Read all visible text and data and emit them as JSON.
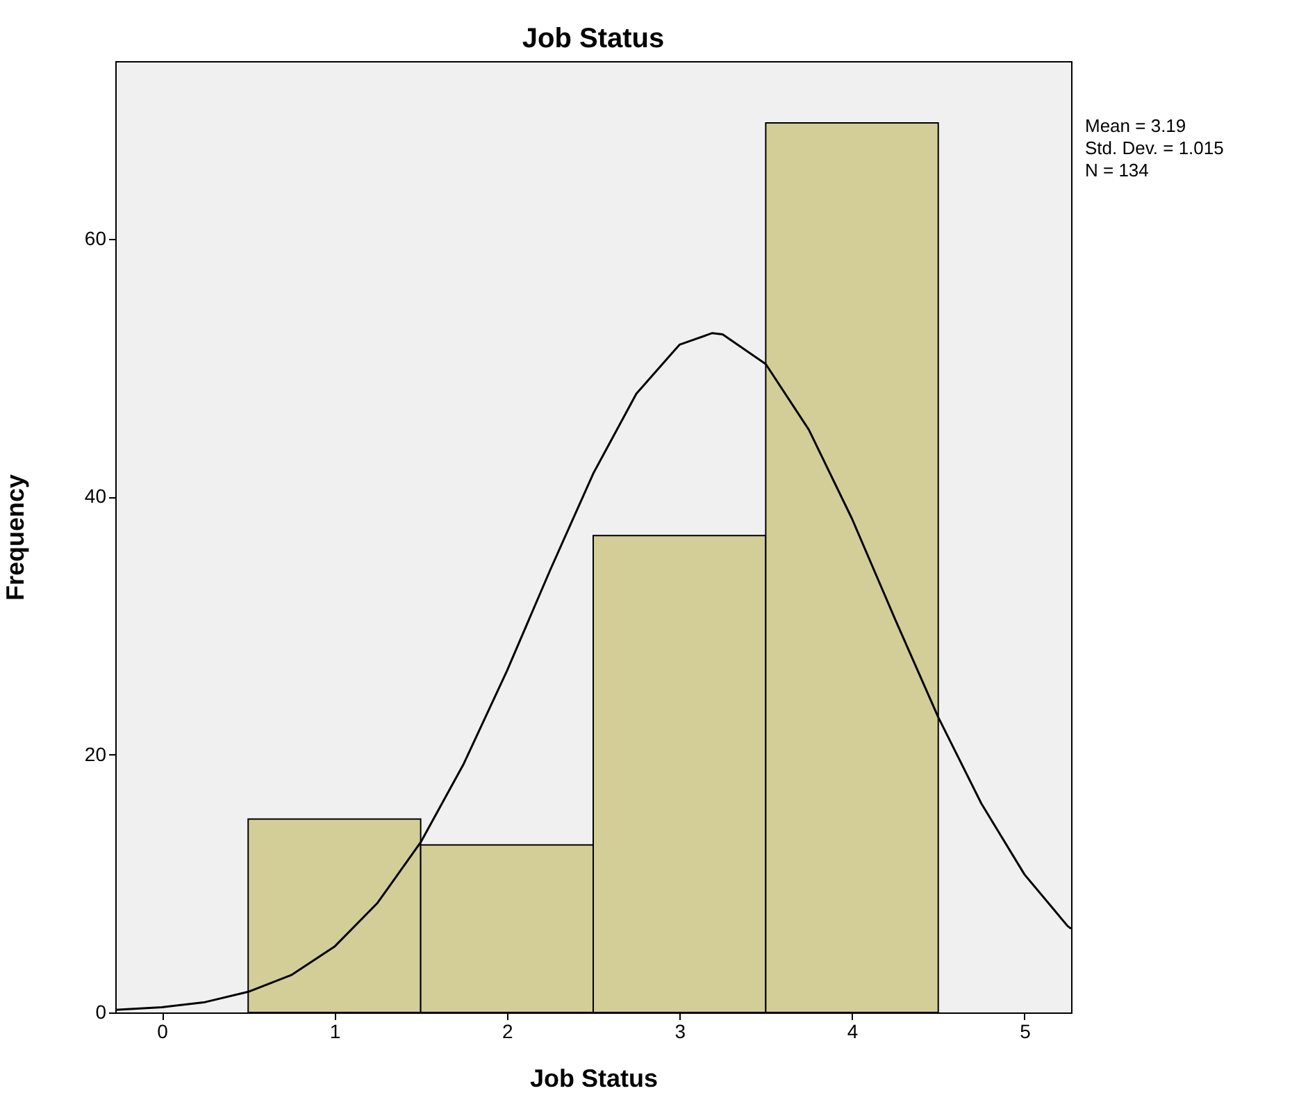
{
  "chart_data": {
    "type": "histogram",
    "title": "Job Status",
    "xlabel": "Job Status",
    "ylabel": "Frequency",
    "bins": [
      0.5,
      1.5,
      2.5,
      3.5,
      4.5
    ],
    "values": [
      15,
      13,
      37,
      69
    ],
    "color": "#d3ce98",
    "series": [
      {
        "type": "line",
        "color": "#000000",
        "x": [
          -0.27,
          0,
          0.25,
          0.5,
          0.75,
          1,
          1.25,
          1.5,
          1.75,
          2,
          2.25,
          2.5,
          2.75,
          3,
          3.19,
          3.25,
          3.5,
          3.75,
          4,
          4.25,
          4.5,
          4.75,
          5,
          5.25,
          5.27
        ],
        "values": [
          0.2,
          0.4,
          0.8,
          1.6,
          2.9,
          5.1,
          8.5,
          13.2,
          19.3,
          26.5,
          34.3,
          41.8,
          48.0,
          51.8,
          52.7,
          52.6,
          50.3,
          45.2,
          38.3,
          30.5,
          22.9,
          16.2,
          10.7,
          6.7,
          6.5
        ]
      }
    ],
    "xlim": [
      -0.27,
      5.27
    ],
    "xticks": [
      0,
      1,
      2,
      3,
      4,
      5
    ],
    "ylim": [
      0,
      73.8
    ],
    "yticks": [
      0,
      20,
      40,
      60
    ],
    "grid": false,
    "annotations": [
      "Mean = 3.19",
      "Std. Dev. = 1.015",
      "N = 134"
    ]
  }
}
